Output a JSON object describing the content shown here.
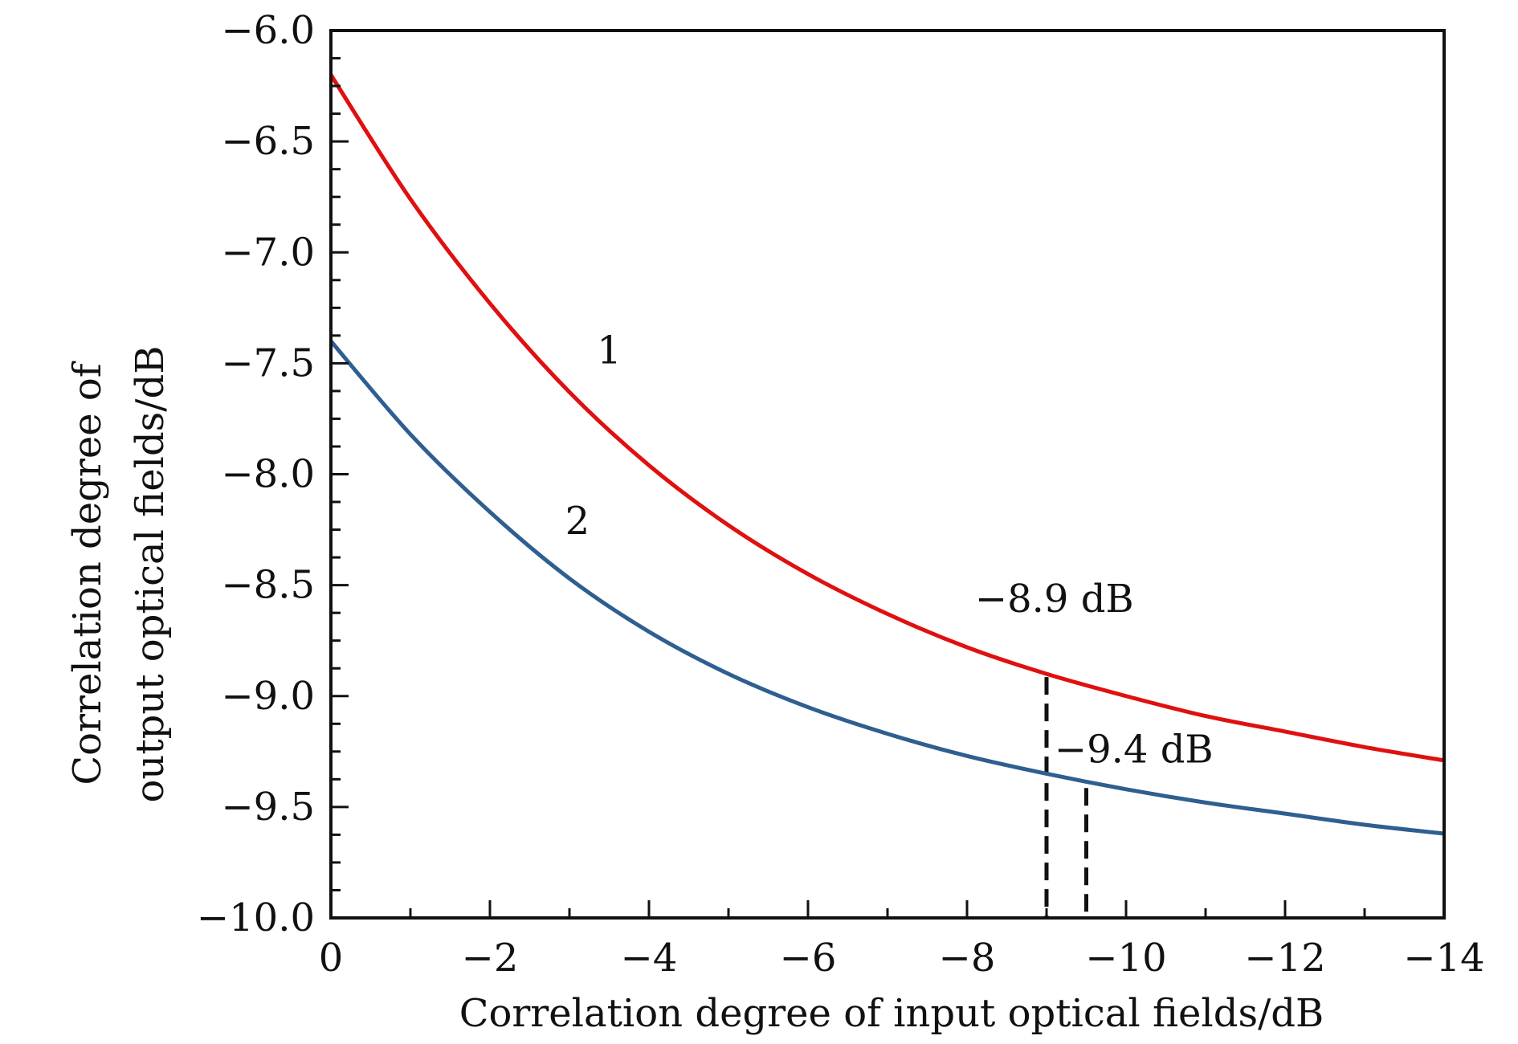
{
  "chart_data": {
    "type": "line",
    "title": "",
    "xlabel": "Correlation degree of input optical fields/dB",
    "ylabel_lines": [
      "Correlation degree of",
      "output optical fields/dB"
    ],
    "xlim": [
      0,
      -14
    ],
    "ylim": [
      -10.0,
      -6.0
    ],
    "xticks": [
      0,
      -2,
      -4,
      -6,
      -8,
      -10,
      -12,
      -14
    ],
    "xtick_labels": [
      "0",
      "−2",
      "−4",
      "−6",
      "−8",
      "−10",
      "−12",
      "−14"
    ],
    "yticks": [
      -6.0,
      -6.5,
      -7.0,
      -7.5,
      -8.0,
      -8.5,
      -9.0,
      -9.5,
      -10.0
    ],
    "ytick_labels": [
      "−6.0",
      "−6.5",
      "−7.0",
      "−7.5",
      "−8.0",
      "−8.5",
      "−9.0",
      "−9.5",
      "−10.0"
    ],
    "grid": false,
    "series": [
      {
        "name": "1",
        "color": "#e01010",
        "x": [
          0,
          -1,
          -2,
          -3,
          -4,
          -5,
          -6,
          -7,
          -8,
          -9,
          -10,
          -11,
          -12,
          -13,
          -14
        ],
        "y": [
          -6.2,
          -6.76,
          -7.23,
          -7.63,
          -7.96,
          -8.23,
          -8.45,
          -8.63,
          -8.78,
          -8.9,
          -9.0,
          -9.09,
          -9.16,
          -9.23,
          -9.29
        ]
      },
      {
        "name": "2",
        "color": "#2e5f90",
        "x": [
          0,
          -1,
          -2,
          -3,
          -4,
          -5,
          -6,
          -7,
          -8,
          -9,
          -10,
          -11,
          -12,
          -13,
          -14
        ],
        "y": [
          -7.4,
          -7.82,
          -8.17,
          -8.47,
          -8.71,
          -8.9,
          -9.05,
          -9.17,
          -9.27,
          -9.35,
          -9.42,
          -9.48,
          -9.53,
          -9.58,
          -9.62
        ]
      }
    ],
    "annotations": [
      {
        "text": "−8.9 dB",
        "x": -9.0,
        "y": -8.9,
        "dash_to": -10.0
      },
      {
        "text": "−9.4 dB",
        "x": -9.5,
        "y": -9.4,
        "dash_to": -10.0
      }
    ],
    "curve_labels": [
      {
        "text": "1",
        "x": -3.5,
        "y": -7.5
      },
      {
        "text": "2",
        "x": -3.1,
        "y": -8.27
      }
    ]
  }
}
